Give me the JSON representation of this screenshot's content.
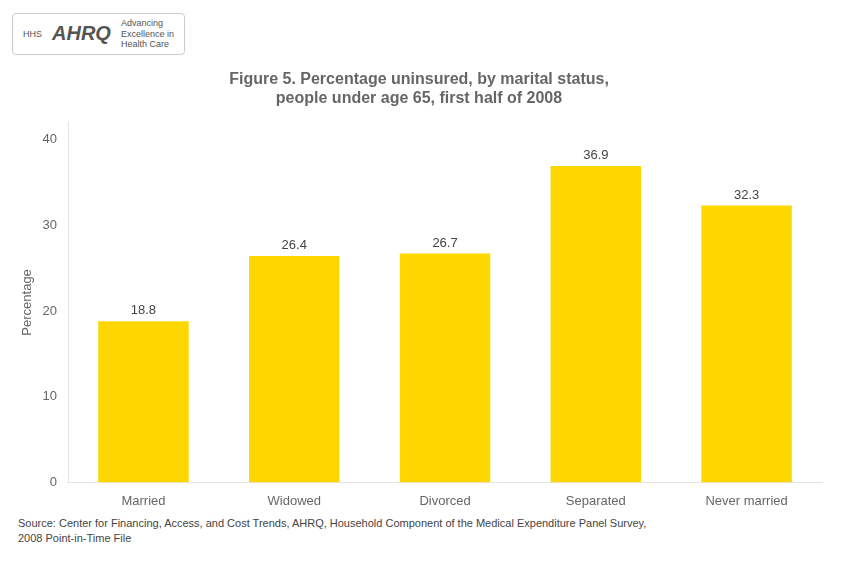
{
  "chart_data": {
    "type": "bar",
    "title": [
      "Figure 5. Percentage uninsured, by marital status,",
      "people under age 65, first half of 2008"
    ],
    "ylabel": "Percentage",
    "categories": [
      "Married",
      "Widowed",
      "Divorced",
      "Separated",
      "Never married"
    ],
    "values": [
      18.8,
      26.4,
      26.7,
      36.9,
      32.3
    ],
    "color": "#FFD700",
    "ylim": [
      0,
      42
    ],
    "yticks": [
      0,
      10,
      20,
      30,
      40
    ],
    "grid": false,
    "data_labels": true,
    "annotations": [
      "Source: Center for Financing, Access, and Cost Trends, AHRQ, Household Component of the Medical Expenditure Panel Survey,\n2008 Point-in-Time File",
      "HHS",
      "AHRQ",
      "Advancing\nExcellence in\nHealth Care"
    ]
  }
}
